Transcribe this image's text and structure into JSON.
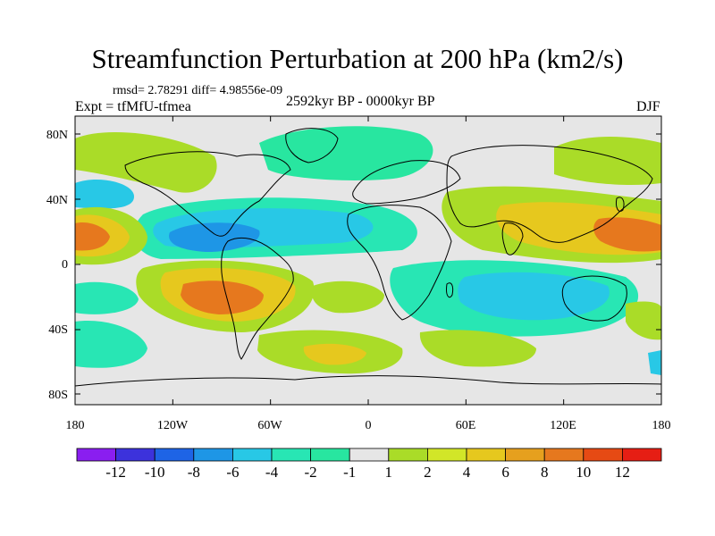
{
  "title": "Streamfunction Perturbation at 200 hPa (km2/s)",
  "stats_text": "rmsd= 2.78291 diff= 4.98556e-09",
  "experiment_text": "Expt = tfMfU-tfmea",
  "period_text": "2592kyr BP - 0000kyr BP",
  "season_text": "DJF",
  "axes": {
    "lon_ticks": [
      "180",
      "120W",
      "60W",
      "0",
      "60E",
      "120E",
      "180"
    ],
    "lat_ticks": [
      "80N",
      "40N",
      "0",
      "40S",
      "80S"
    ]
  },
  "colorbar": {
    "labels": [
      "-12",
      "-10",
      "-8",
      "-6",
      "-4",
      "-2",
      "-1",
      "1",
      "2",
      "4",
      "6",
      "8",
      "10",
      "12"
    ],
    "colors": [
      "#8a1ef0",
      "#3c32dc",
      "#1e64e6",
      "#1e96e6",
      "#28c8e6",
      "#28e6b4",
      "#28e6a0",
      "#e6e6e6",
      "#aadc28",
      "#d2e628",
      "#e6c81e",
      "#e6a01e",
      "#e6781e",
      "#e64a14",
      "#e61e14"
    ]
  },
  "map": {
    "background_color": "#e6e6e6",
    "coastline_color": "#000000"
  }
}
